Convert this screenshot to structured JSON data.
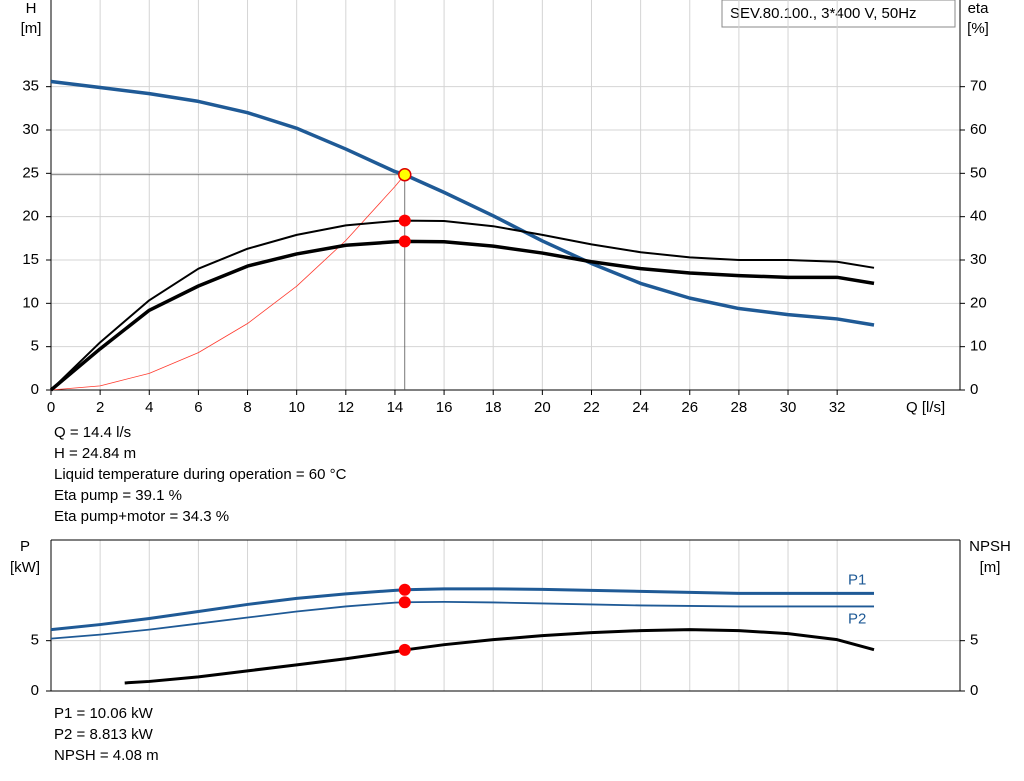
{
  "chart_data": [
    {
      "type": "line",
      "title": "SEV.80.100., 3*400 V, 50Hz",
      "y_label": "H",
      "y_unit": "[m]",
      "y2_label": "eta",
      "y2_unit": "[%]",
      "x_label": "Q [l/s]",
      "x": [
        0,
        2,
        4,
        6,
        8,
        10,
        12,
        14,
        14.4,
        16,
        18,
        20,
        22,
        24,
        26,
        28,
        30,
        32,
        33.5
      ],
      "xlim": [
        0,
        37
      ],
      "xticks": [
        0,
        2,
        4,
        6,
        8,
        10,
        12,
        14,
        16,
        18,
        20,
        22,
        24,
        26,
        28,
        30,
        32
      ],
      "ylim": [
        0,
        45
      ],
      "yticks": [
        0,
        5,
        10,
        15,
        20,
        25,
        30,
        35
      ],
      "y2lim": [
        0,
        90
      ],
      "y2ticks": [
        0,
        10,
        20,
        30,
        40,
        50,
        60,
        70
      ],
      "grid": true,
      "series": [
        {
          "color": "#ff3b2f",
          "width": 0.8,
          "values": [
            0,
            0.479,
            1.92,
            4.31,
            7.67,
            11.98,
            17.25,
            23.48,
            24.84,
            null,
            null,
            null,
            null,
            null,
            null,
            null,
            null,
            null,
            null
          ]
        },
        {
          "color": "#1f5a96",
          "width": 3.5,
          "values": [
            35.6,
            34.9,
            34.2,
            33.3,
            32,
            30.2,
            27.8,
            25.2,
            24.84,
            22.8,
            20.1,
            17.2,
            14.6,
            12.3,
            10.6,
            9.4,
            8.7,
            8.2,
            7.5
          ]
        },
        {
          "color": "#000000",
          "width": 2,
          "axis": "y2",
          "values": [
            0,
            11,
            20.7,
            28,
            32.6,
            35.8,
            38,
            39,
            39.1,
            39,
            37.8,
            35.8,
            33.6,
            31.8,
            30.6,
            30,
            30,
            29.6,
            28.2
          ]
        },
        {
          "color": "#000000",
          "width": 3.5,
          "axis": "y2",
          "values": [
            0,
            9.5,
            18.4,
            24,
            28.6,
            31.4,
            33.4,
            34.2,
            34.3,
            34.2,
            33.2,
            31.6,
            29.6,
            28,
            27,
            26.4,
            26,
            26,
            24.6
          ]
        }
      ],
      "markers": [
        {
          "x": 14.4,
          "y": 39.1,
          "axis": "y2",
          "color": "#ff0000"
        },
        {
          "x": 14.4,
          "y": 34.3,
          "axis": "y2",
          "color": "#ff0000"
        },
        {
          "x": 14.4,
          "y": 24.84,
          "color": "#ffff00"
        }
      ],
      "info": [
        "Q = 14.4 l/s",
        "H = 24.84 m",
        "Liquid temperature during operation = 60 °C",
        "Eta pump = 39.1 %",
        "Eta pump+motor = 34.3 %"
      ]
    },
    {
      "type": "line",
      "y_label": "P",
      "y_unit": "[kW]",
      "y2_label": "NPSH",
      "y2_unit": "[m]",
      "x": [
        0,
        2,
        3,
        4,
        6,
        8,
        10,
        12,
        14,
        14.4,
        16,
        18,
        20,
        22,
        24,
        26,
        28,
        30,
        32,
        33.5
      ],
      "xlim": [
        0,
        37
      ],
      "ylim": [
        0,
        15
      ],
      "yticks": [
        0,
        5
      ],
      "y2lim": [
        0,
        15
      ],
      "y2ticks": [
        0,
        5
      ],
      "grid": true,
      "series": [
        {
          "name": "P1",
          "color": "#1f5a96",
          "width": 3,
          "values": [
            6.1,
            6.6,
            6.9,
            7.2,
            7.9,
            8.6,
            9.2,
            9.65,
            10.0,
            10.06,
            10.15,
            10.15,
            10.1,
            10.0,
            9.9,
            9.8,
            9.7,
            9.7,
            9.7,
            9.7
          ]
        },
        {
          "name": "P2",
          "color": "#1f5a96",
          "width": 1.8,
          "values": [
            5.2,
            5.6,
            5.85,
            6.1,
            6.7,
            7.3,
            7.9,
            8.4,
            8.78,
            8.813,
            8.85,
            8.8,
            8.7,
            8.6,
            8.5,
            8.45,
            8.4,
            8.4,
            8.4,
            8.4
          ]
        },
        {
          "color": "#000000",
          "width": 3,
          "axis": "y2",
          "values": [
            null,
            null,
            0.8,
            0.95,
            1.4,
            2.0,
            2.6,
            3.2,
            3.9,
            4.08,
            4.6,
            5.1,
            5.5,
            5.8,
            6.0,
            6.1,
            6.0,
            5.7,
            5.1,
            4.1
          ]
        }
      ],
      "markers": [
        {
          "x": 14.4,
          "y": 10.06,
          "color": "#ff0000"
        },
        {
          "x": 14.4,
          "y": 8.813,
          "color": "#ff0000"
        },
        {
          "x": 14.4,
          "y": 4.08,
          "axis": "y2",
          "color": "#ff0000"
        }
      ],
      "info": [
        "P1 = 10.06 kW",
        "P2 = 8.813 kW",
        "NPSH = 4.08 m"
      ]
    }
  ]
}
